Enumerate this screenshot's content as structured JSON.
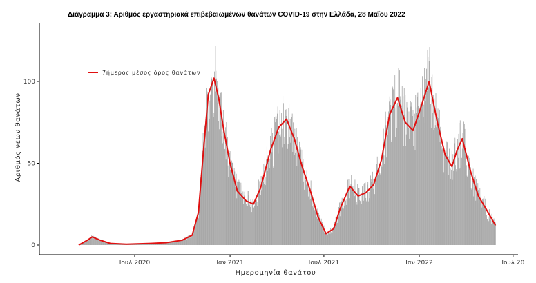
{
  "chart_data": {
    "type": "bar",
    "title": "Διάγραμμα 3: Αριθμός εργαστηριακά επιβεβαιωμένων θανάτων COVID-19 στην Ελλάδα, 28 Μαΐου 2022",
    "xlabel": "Ημερομηνία θανάτου",
    "ylabel": "Αριθμός νέων θανάτων",
    "ylim": [
      0,
      130
    ],
    "y_ticks": [
      0,
      50,
      100
    ],
    "y_tick_labels": [
      "0",
      "50",
      "100"
    ],
    "x_ticks": [
      "Ιουλ 2020",
      "Ιαν 2021",
      "Ιουλ 2021",
      "Ιαν 2022",
      "Ιουλ 20"
    ],
    "x_range": [
      "2020-03-01",
      "2022-07-15"
    ],
    "grid": false,
    "legend_position": "top-left",
    "colors": {
      "bars": "#a6a6a6",
      "line": "#e01010"
    },
    "series": [
      {
        "kind": "bars",
        "name": "",
        "points": [
          [
            "2020-03-15",
            0
          ],
          [
            "2020-04-01",
            3
          ],
          [
            "2020-04-10",
            5
          ],
          [
            "2020-04-25",
            3
          ],
          [
            "2020-05-15",
            1
          ],
          [
            "2020-06-15",
            0.5
          ],
          [
            "2020-08-01",
            1
          ],
          [
            "2020-09-01",
            1.5
          ],
          [
            "2020-10-01",
            3
          ],
          [
            "2020-10-20",
            6
          ],
          [
            "2020-11-01",
            20
          ],
          [
            "2020-11-10",
            55
          ],
          [
            "2020-11-20",
            92
          ],
          [
            "2020-12-01",
            102
          ],
          [
            "2020-12-10",
            90
          ],
          [
            "2020-12-20",
            70
          ],
          [
            "2021-01-01",
            50
          ],
          [
            "2021-01-15",
            33
          ],
          [
            "2021-02-01",
            27
          ],
          [
            "2021-02-15",
            25
          ],
          [
            "2021-03-01",
            35
          ],
          [
            "2021-03-20",
            58
          ],
          [
            "2021-04-05",
            72
          ],
          [
            "2021-04-20",
            77
          ],
          [
            "2021-05-05",
            65
          ],
          [
            "2021-05-20",
            48
          ],
          [
            "2021-06-05",
            33
          ],
          [
            "2021-06-20",
            17
          ],
          [
            "2021-07-05",
            7
          ],
          [
            "2021-07-20",
            10
          ],
          [
            "2021-08-01",
            22
          ],
          [
            "2021-08-20",
            36
          ],
          [
            "2021-09-05",
            30
          ],
          [
            "2021-09-20",
            32
          ],
          [
            "2021-10-05",
            37
          ],
          [
            "2021-10-20",
            52
          ],
          [
            "2021-11-05",
            80
          ],
          [
            "2021-11-20",
            90
          ],
          [
            "2021-12-05",
            75
          ],
          [
            "2021-12-20",
            70
          ],
          [
            "2022-01-05",
            85
          ],
          [
            "2022-01-20",
            100
          ],
          [
            "2022-02-05",
            75
          ],
          [
            "2022-02-20",
            55
          ],
          [
            "2022-03-05",
            48
          ],
          [
            "2022-03-15",
            58
          ],
          [
            "2022-03-25",
            65
          ],
          [
            "2022-04-10",
            45
          ],
          [
            "2022-04-25",
            30
          ],
          [
            "2022-05-10",
            22
          ],
          [
            "2022-05-28",
            12
          ]
        ]
      },
      {
        "kind": "line",
        "name": "7ήμερος μέσος όρος θανάτων",
        "points": [
          [
            "2020-03-15",
            0
          ],
          [
            "2020-04-01",
            3
          ],
          [
            "2020-04-10",
            5
          ],
          [
            "2020-04-25",
            3
          ],
          [
            "2020-05-15",
            1
          ],
          [
            "2020-06-15",
            0.5
          ],
          [
            "2020-08-01",
            1
          ],
          [
            "2020-09-01",
            1.5
          ],
          [
            "2020-10-01",
            3
          ],
          [
            "2020-10-20",
            6
          ],
          [
            "2020-11-01",
            20
          ],
          [
            "2020-11-10",
            55
          ],
          [
            "2020-11-20",
            92
          ],
          [
            "2020-12-01",
            102
          ],
          [
            "2020-12-10",
            90
          ],
          [
            "2020-12-20",
            70
          ],
          [
            "2021-01-01",
            50
          ],
          [
            "2021-01-15",
            33
          ],
          [
            "2021-02-01",
            27
          ],
          [
            "2021-02-15",
            25
          ],
          [
            "2021-03-01",
            35
          ],
          [
            "2021-03-20",
            58
          ],
          [
            "2021-04-05",
            72
          ],
          [
            "2021-04-20",
            77
          ],
          [
            "2021-05-05",
            65
          ],
          [
            "2021-05-20",
            48
          ],
          [
            "2021-06-05",
            33
          ],
          [
            "2021-06-20",
            17
          ],
          [
            "2021-07-05",
            7
          ],
          [
            "2021-07-20",
            10
          ],
          [
            "2021-08-01",
            22
          ],
          [
            "2021-08-20",
            36
          ],
          [
            "2021-09-05",
            30
          ],
          [
            "2021-09-20",
            32
          ],
          [
            "2021-10-05",
            37
          ],
          [
            "2021-10-20",
            52
          ],
          [
            "2021-11-05",
            80
          ],
          [
            "2021-11-20",
            90
          ],
          [
            "2021-12-05",
            75
          ],
          [
            "2021-12-20",
            70
          ],
          [
            "2022-01-05",
            85
          ],
          [
            "2022-01-20",
            100
          ],
          [
            "2022-02-05",
            75
          ],
          [
            "2022-02-20",
            55
          ],
          [
            "2022-03-05",
            48
          ],
          [
            "2022-03-15",
            58
          ],
          [
            "2022-03-25",
            65
          ],
          [
            "2022-04-10",
            45
          ],
          [
            "2022-04-25",
            30
          ],
          [
            "2022-05-10",
            22
          ],
          [
            "2022-05-28",
            12
          ]
        ]
      }
    ]
  }
}
